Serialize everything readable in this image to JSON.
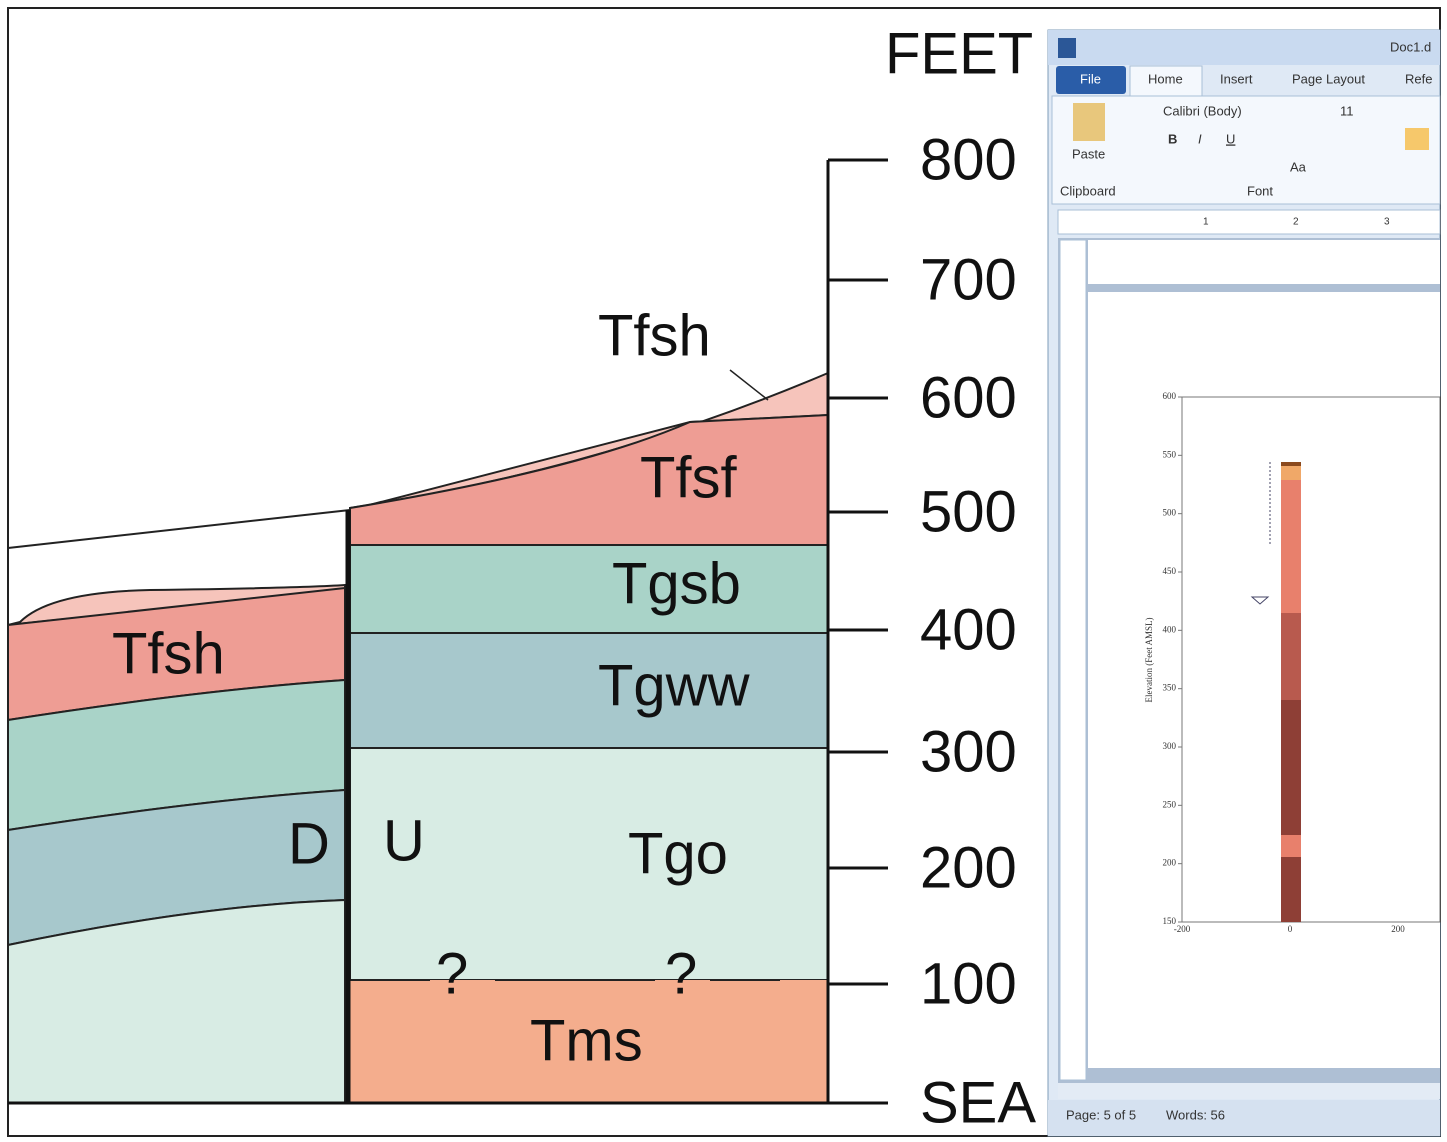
{
  "cross_section": {
    "axis_title": "FEET",
    "scale_labels": [
      "800",
      "700",
      "600",
      "500",
      "400",
      "300",
      "200",
      "100",
      "SEA"
    ],
    "units": {
      "tfsh_upper": "Tfsh",
      "tfsf": "Tfsf",
      "tgsb": "Tgsb",
      "tgww": "Tgww",
      "tgo": "Tgo",
      "tms": "Tms",
      "tfsh_left": "Tfsh"
    },
    "fault": {
      "down": "D",
      "up": "U"
    },
    "uncertain": [
      "?",
      "?"
    ]
  },
  "word_window": {
    "title": "Doc1.d",
    "tabs": [
      "File",
      "Home",
      "Insert",
      "Page Layout",
      "Refe"
    ],
    "font_name": "Calibri (Body)",
    "font_size": "11",
    "paste": "Paste",
    "format_buttons": [
      "B",
      "I",
      "U",
      "Aa"
    ],
    "groups": [
      "Clipboard",
      "Font"
    ],
    "ruler": [
      "1",
      "2",
      "3"
    ],
    "status": [
      "Page: 5 of 5",
      "Words: 56"
    ],
    "embedded_chart": {
      "y_label": "Elevation (Feet AMSL)",
      "yticks": [
        "600",
        "550",
        "500",
        "450",
        "400",
        "350",
        "300",
        "250",
        "200",
        "150"
      ],
      "xticks": [
        "-200",
        "0",
        "200"
      ]
    }
  }
}
